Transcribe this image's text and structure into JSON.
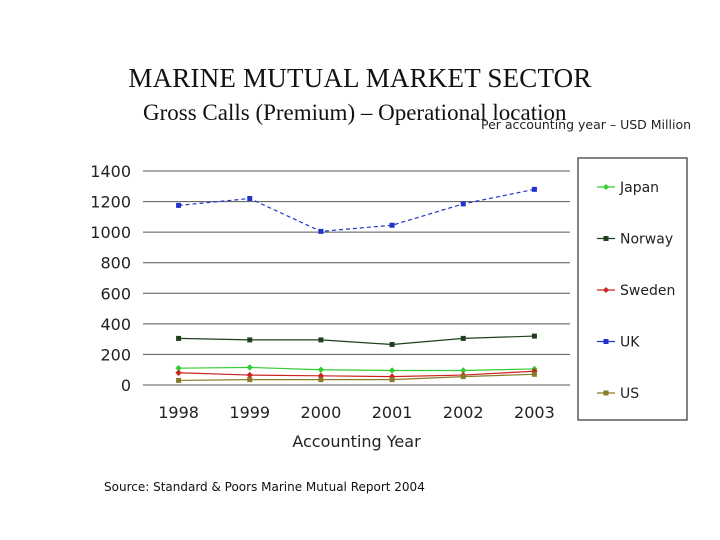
{
  "page": {
    "title": "MARINE MUTUAL MARKET SECTOR",
    "subtitle": "Gross Calls (Premium) – Operational location",
    "unit_note": "Per accounting year – USD Million",
    "source": "Source: Standard & Poors Marine Mutual Report 2004"
  },
  "chart_data": {
    "type": "line",
    "title": "",
    "xlabel": "Accounting Year",
    "ylabel": "",
    "categories": [
      "1998",
      "1999",
      "2000",
      "2001",
      "2002",
      "2003"
    ],
    "ylim": [
      0,
      1400
    ],
    "yticks": [
      0,
      200,
      400,
      600,
      800,
      1000,
      1200,
      1400
    ],
    "grid": true,
    "legend_position": "right",
    "series": [
      {
        "name": "Japan",
        "color": "#33cc33",
        "marker": "diamond",
        "values": [
          110,
          115,
          100,
          95,
          95,
          105
        ]
      },
      {
        "name": "Norway",
        "color": "#1f3f1f",
        "marker": "square",
        "values": [
          305,
          295,
          295,
          265,
          305,
          320
        ]
      },
      {
        "name": "Sweden",
        "color": "#cc2222",
        "marker": "diamond",
        "values": [
          80,
          65,
          60,
          55,
          65,
          90
        ]
      },
      {
        "name": "UK",
        "color": "#2233cc",
        "marker": "square",
        "values": [
          1175,
          1220,
          1005,
          1045,
          1185,
          1280
        ]
      },
      {
        "name": "US",
        "color": "#8a7a2a",
        "marker": "square",
        "values": [
          30,
          35,
          35,
          35,
          55,
          70
        ]
      }
    ]
  }
}
